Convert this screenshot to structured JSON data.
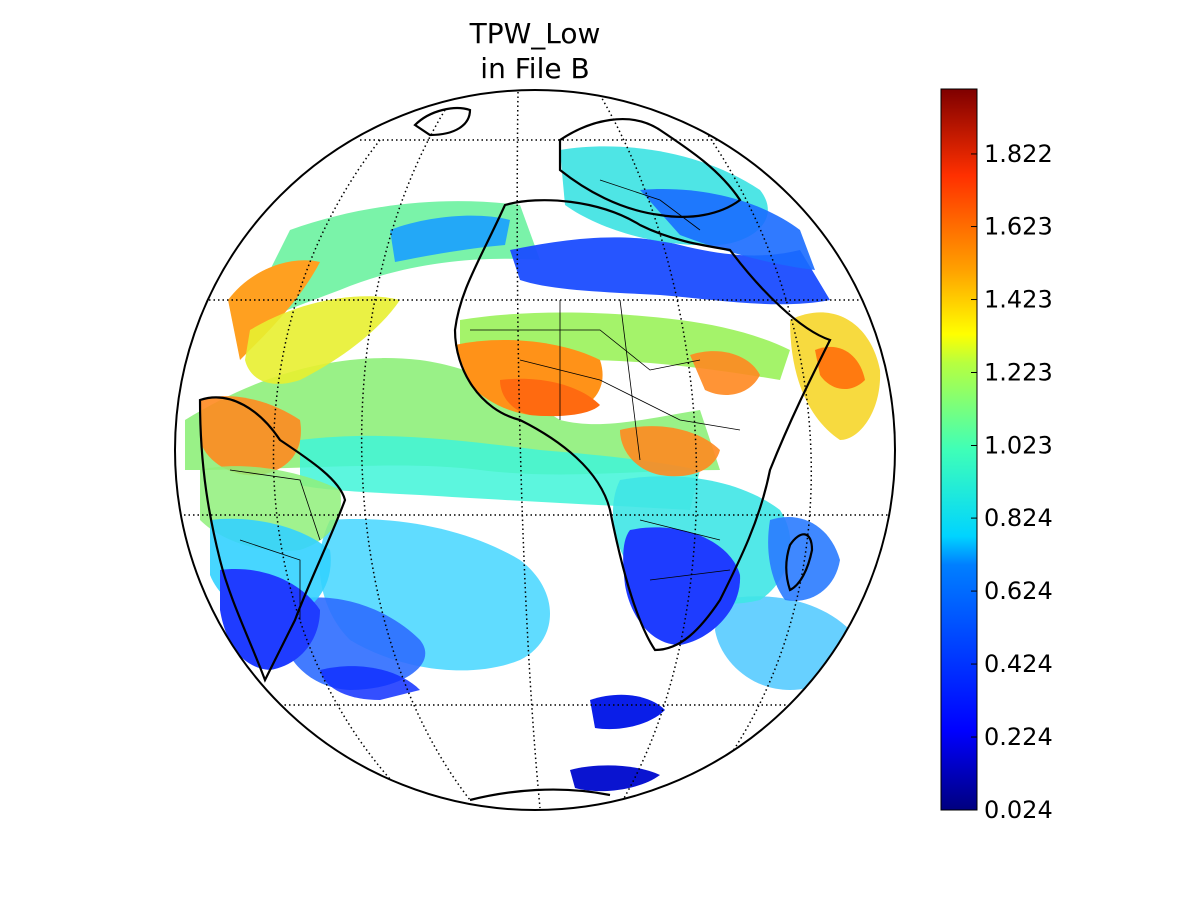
{
  "title": {
    "line1": "TPW_Low",
    "line2": "in File B"
  },
  "map": {
    "projection": "orthographic",
    "grid": "dotted",
    "meridians_deg": [
      -60,
      -30,
      0,
      30,
      60
    ],
    "parallels_deg": [
      -60,
      -30,
      0,
      30,
      60
    ],
    "land_outline_color": "#000000",
    "background_color": "#ffffff"
  },
  "colorbar": {
    "colormap": "jet",
    "min": 0.024,
    "max": 2.0,
    "ticks": [
      "0.024",
      "0.224",
      "0.424",
      "0.624",
      "0.824",
      "1.023",
      "1.223",
      "1.423",
      "1.623",
      "1.822"
    ],
    "tick_values": [
      0.024,
      0.224,
      0.424,
      0.624,
      0.824,
      1.023,
      1.223,
      1.423,
      1.623,
      1.822
    ],
    "colors": [
      "#00007f",
      "#0000ff",
      "#007fff",
      "#00ffff",
      "#7fff7f",
      "#ffff00",
      "#ff7f00",
      "#ff0000",
      "#7f0000"
    ]
  }
}
